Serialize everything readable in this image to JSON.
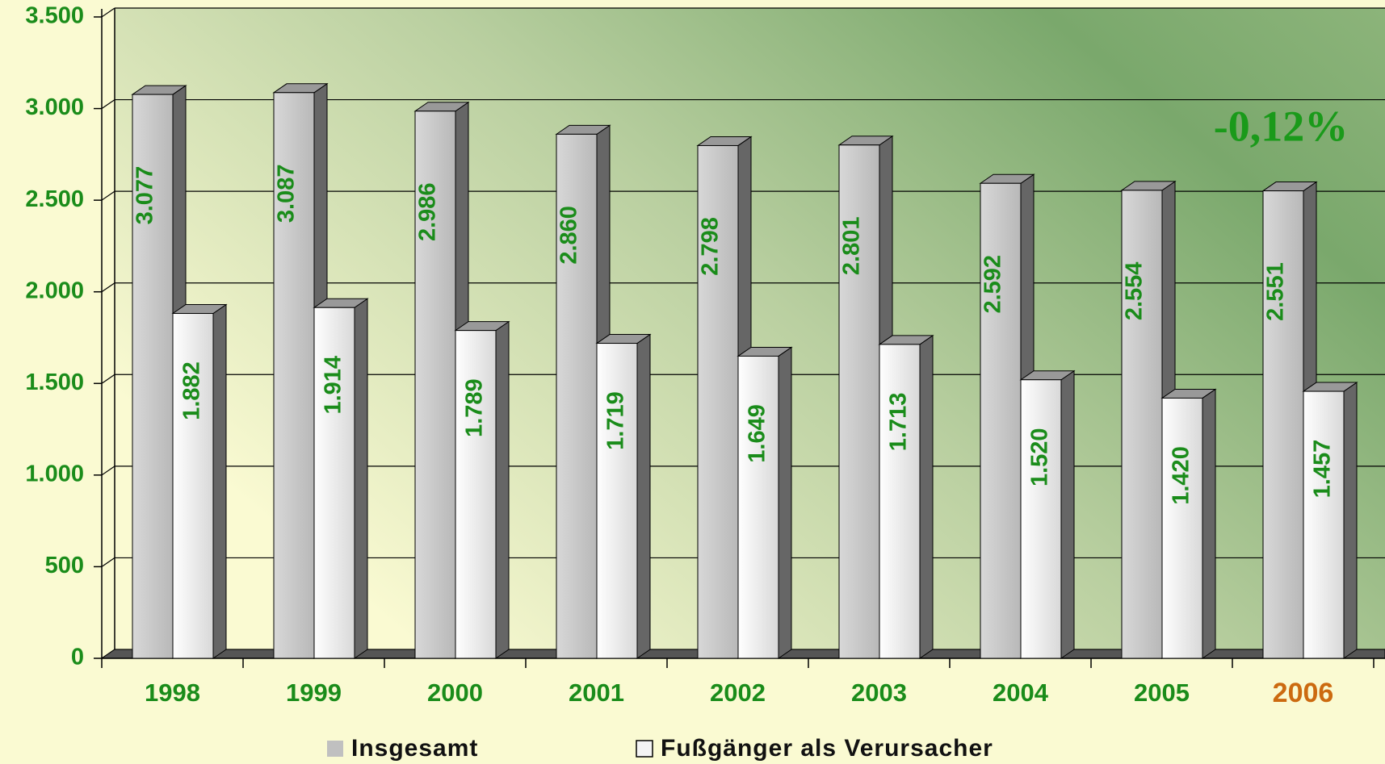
{
  "chart_data": {
    "type": "bar3d",
    "categories": [
      "1998",
      "1999",
      "2000",
      "2001",
      "2002",
      "2003",
      "2004",
      "2005",
      "2006"
    ],
    "category_label_colors": [
      "#1a8c1a",
      "#1a8c1a",
      "#1a8c1a",
      "#1a8c1a",
      "#1a8c1a",
      "#1a8c1a",
      "#1a8c1a",
      "#1a8c1a",
      "#cc6a10"
    ],
    "series": [
      {
        "name": "Insgesamt",
        "color": "#c0c0c0",
        "values": [
          3077,
          3087,
          2986,
          2860,
          2798,
          2801,
          2592,
          2554,
          2551
        ],
        "value_labels": [
          "3.077",
          "3.087",
          "2.986",
          "2.860",
          "2.798",
          "2.801",
          "2.592",
          "2.554",
          "2.551"
        ]
      },
      {
        "name": "Fußgänger als Verursacher",
        "color": "#f4f4f4",
        "values": [
          1882,
          1914,
          1789,
          1719,
          1649,
          1713,
          1520,
          1420,
          1457
        ],
        "value_labels": [
          "1.882",
          "1.914",
          "1.789",
          "1.719",
          "1.649",
          "1.713",
          "1.520",
          "1.420",
          "1.457"
        ]
      }
    ],
    "ylim": [
      0,
      3500
    ],
    "yticks": [
      0,
      500,
      {
        "value": 1000,
        "label": "1.000"
      },
      {
        "value": 1500,
        "label": "1.500"
      },
      {
        "value": 2000,
        "label": "2.000"
      },
      {
        "value": 2500,
        "label": "2.500"
      },
      {
        "value": 3000,
        "label": "3.000"
      },
      {
        "value": 3500,
        "label": "3.500"
      }
    ],
    "grid": true,
    "annotation": "-0,12%"
  }
}
